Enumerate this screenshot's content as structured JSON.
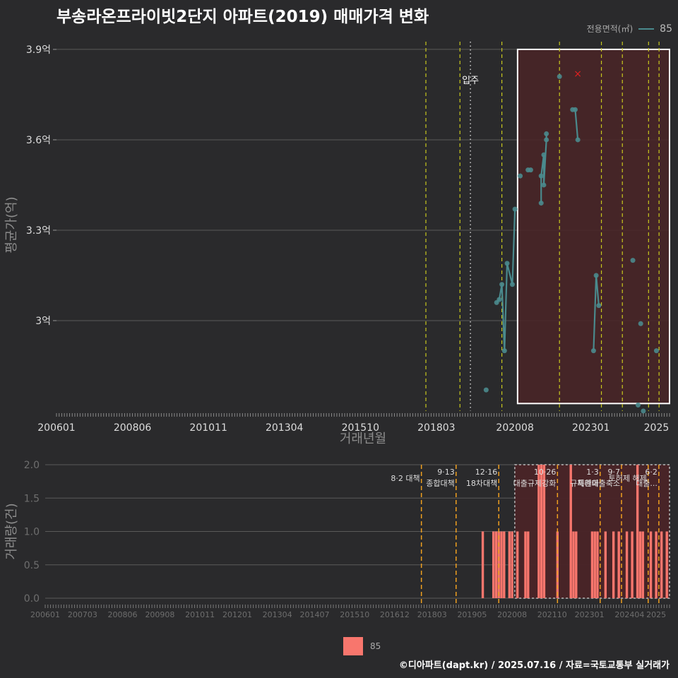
{
  "title": "부송라온프라이빗2단지 아파트(2019) 매매가격 변화",
  "legend_top": {
    "label": "전용면적(㎡)",
    "value": "85"
  },
  "legend_bottom": {
    "value": "85"
  },
  "footer": "©디아파트(dapt.kr) / 2025.07.16 / 자료=국토교통부 실거래가",
  "colors": {
    "line": "#4a8a8d",
    "bar": "#f8766d",
    "vline": "#c8c81e",
    "vline_bottom": "#f0a020",
    "grid": "#5a5a5a",
    "highlight": "#4a2427"
  },
  "chart_data": [
    {
      "type": "line",
      "title": "부송라온프라이빗2단지 아파트(2019) 매매가격 변화",
      "xlabel": "거래년월",
      "ylabel": "평균가(억)",
      "x_ticks": [
        "200601",
        "200806",
        "201011",
        "201304",
        "201510",
        "201803",
        "202008",
        "202301",
        "2025"
      ],
      "x_tick_index": [
        0,
        29,
        58,
        87,
        116,
        145,
        175,
        204,
        229
      ],
      "y_ticks": [
        3.0,
        3.3,
        3.6,
        3.9
      ],
      "y_tick_labels": [
        "3억",
        "3.3억",
        "3.6억",
        "3.9억"
      ],
      "ylim": [
        2.7,
        3.935
      ],
      "xlim_index": [
        0,
        234
      ],
      "series": [
        {
          "name": "85",
          "points": [
            [
              164,
              2.77
            ],
            [
              168,
              3.06
            ],
            [
              169,
              3.07
            ],
            [
              170,
              3.12
            ],
            [
              171,
              2.9
            ],
            [
              172,
              3.19
            ],
            [
              174,
              3.12
            ],
            [
              175,
              3.37
            ],
            [
              177,
              3.48
            ],
            [
              180,
              3.5
            ],
            [
              181,
              3.5
            ],
            [
              185,
              3.39
            ],
            [
              185,
              3.48
            ],
            [
              186,
              3.55
            ],
            [
              186,
              3.45
            ],
            [
              187,
              3.6
            ],
            [
              187,
              3.62
            ],
            [
              192,
              3.81
            ],
            [
              197,
              3.7
            ],
            [
              198,
              3.7
            ],
            [
              199,
              3.6
            ],
            [
              205,
              2.9
            ],
            [
              206,
              3.15
            ],
            [
              207,
              3.05
            ],
            [
              220,
              3.2
            ],
            [
              222,
              2.72
            ],
            [
              223,
              2.99
            ],
            [
              224,
              2.7
            ],
            [
              229,
              2.9
            ]
          ]
        }
      ],
      "segments": [
        [
          168,
          175
        ],
        [
          185,
          187
        ],
        [
          197,
          199
        ],
        [
          205,
          207
        ]
      ],
      "annotation": {
        "label": "입주",
        "index": 158
      },
      "vlines_index": [
        141,
        154,
        170,
        192,
        208,
        216,
        226,
        230
      ],
      "highlight_box": {
        "from_index": 176,
        "to_index": 234,
        "ymin": 2.725,
        "ymax": 3.9
      },
      "outlier_marker": {
        "index": 199,
        "value": 3.82
      }
    },
    {
      "type": "bar",
      "ylabel": "거래량(건)",
      "x_ticks": [
        "200601",
        "200703",
        "200806",
        "200908",
        "201011",
        "201201",
        "201304",
        "201407",
        "201510",
        "201612",
        "201803",
        "201905",
        "202008",
        "202110",
        "202301",
        "202404",
        "2025"
      ],
      "x_tick_index": [
        0,
        14,
        29,
        43,
        58,
        72,
        87,
        101,
        116,
        131,
        145,
        160,
        175,
        190,
        204,
        219,
        229
      ],
      "y_ticks": [
        0.0,
        0.5,
        1.0,
        1.5,
        2.0
      ],
      "y_tick_labels": [
        "0.0",
        "0.5",
        "1.0",
        "1.5",
        "2.0"
      ],
      "ylim": [
        0,
        2.0
      ],
      "bars": [
        [
          164,
          1
        ],
        [
          168,
          1
        ],
        [
          169,
          1
        ],
        [
          170,
          1
        ],
        [
          171,
          1
        ],
        [
          172,
          1
        ],
        [
          174,
          1
        ],
        [
          175,
          1
        ],
        [
          177,
          1
        ],
        [
          180,
          1
        ],
        [
          181,
          1
        ],
        [
          185,
          2
        ],
        [
          186,
          2
        ],
        [
          187,
          2
        ],
        [
          192,
          1
        ],
        [
          197,
          2
        ],
        [
          198,
          1
        ],
        [
          199,
          1
        ],
        [
          205,
          1
        ],
        [
          206,
          1
        ],
        [
          207,
          1
        ],
        [
          210,
          1
        ],
        [
          213,
          1
        ],
        [
          215,
          1
        ],
        [
          218,
          1
        ],
        [
          220,
          1
        ],
        [
          222,
          2
        ],
        [
          223,
          1
        ],
        [
          224,
          1
        ],
        [
          227,
          1
        ],
        [
          229,
          1
        ],
        [
          231,
          1
        ],
        [
          233,
          1
        ]
      ],
      "policy_lines": [
        {
          "index": 141,
          "label": "8·2 대책"
        },
        {
          "index": 154,
          "label": "9·13\n종합대책"
        },
        {
          "index": 170,
          "label": "12·16\n18차대책"
        },
        {
          "index": 192,
          "label": "10·26\n대출규제강화"
        },
        {
          "index": 208,
          "label": "1·3\n규제완화"
        },
        {
          "index": 216,
          "label": "9·7\n특례대출축소"
        },
        {
          "index": 226,
          "label": "토허제 해제"
        },
        {
          "index": 230,
          "label": "6·2\n대출..."
        }
      ],
      "highlight_box": {
        "from_index": 176,
        "to_index": 234,
        "ymin": 0,
        "ymax": 2.0
      }
    }
  ]
}
